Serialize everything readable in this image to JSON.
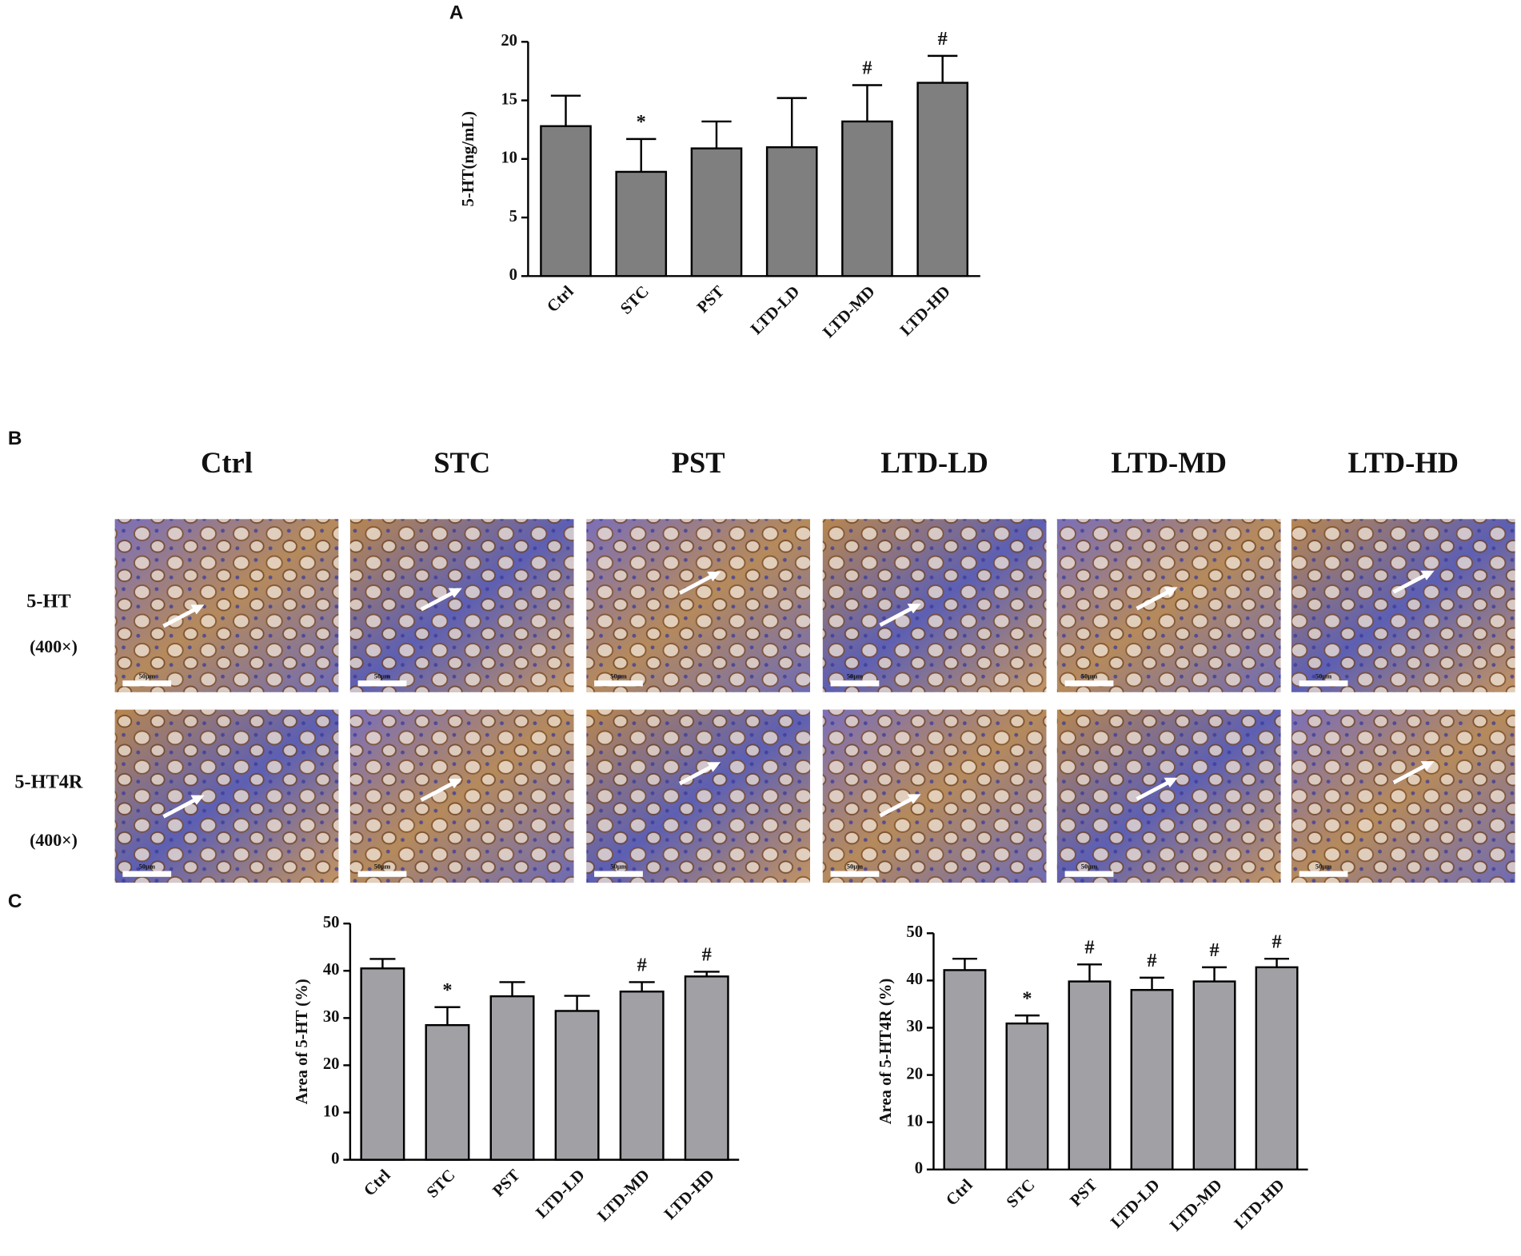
{
  "chart_data": [
    {
      "type": "bar",
      "panel_label": "A",
      "ylabel": "5-HT(ng/mL)",
      "categories": [
        "Ctrl",
        "STC",
        "PST",
        "LTD-LD",
        "LTD-MD",
        "LTD-HD"
      ],
      "values": [
        12.8,
        8.9,
        10.9,
        11.0,
        13.2,
        16.5
      ],
      "errors": [
        2.6,
        2.8,
        2.3,
        4.2,
        3.1,
        2.3
      ],
      "annotations": [
        null,
        "*",
        null,
        null,
        "#",
        "#"
      ],
      "color": "#7f7f7f",
      "ylim": [
        0,
        20
      ],
      "yticks": [
        0,
        5,
        10,
        15,
        20
      ]
    },
    {
      "type": "bar",
      "panel_label": "C",
      "ylabel": "Area of  5-HT  (%)",
      "categories": [
        "Ctrl",
        "STC",
        "PST",
        "LTD-LD",
        "LTD-MD",
        "LTD-HD"
      ],
      "values": [
        40.5,
        28.5,
        34.6,
        31.5,
        35.6,
        38.8
      ],
      "errors": [
        2.0,
        3.8,
        3.0,
        3.2,
        2.0,
        1.0
      ],
      "annotations": [
        null,
        "*",
        null,
        null,
        "#",
        "#"
      ],
      "color": "#a1a1a5",
      "ylim": [
        0,
        50
      ],
      "yticks": [
        0,
        10,
        20,
        30,
        40,
        50
      ]
    },
    {
      "type": "bar",
      "ylabel": "Area of  5-HT4R  (%)",
      "categories": [
        "Ctrl",
        "STC",
        "PST",
        "LTD-LD",
        "LTD-MD",
        "LTD-HD"
      ],
      "values": [
        42.2,
        30.9,
        39.8,
        38.0,
        39.8,
        42.8
      ],
      "errors": [
        2.4,
        1.7,
        3.6,
        2.6,
        3.0,
        1.8
      ],
      "annotations": [
        null,
        "*",
        "#",
        "#",
        "#",
        "#"
      ],
      "color": "#a1a1a5",
      "ylim": [
        0,
        50
      ],
      "yticks": [
        0,
        10,
        20,
        30,
        40,
        50
      ]
    }
  ],
  "panel_b": {
    "label": "B",
    "columns": [
      "Ctrl",
      "STC",
      "PST",
      "LTD-LD",
      "LTD-MD",
      "LTD-HD"
    ],
    "rows": [
      {
        "name": "5-HT",
        "magnification": "(400×)"
      },
      {
        "name": "5-HT4R",
        "magnification": "(400×)"
      }
    ],
    "scale_bar": "50μm"
  }
}
